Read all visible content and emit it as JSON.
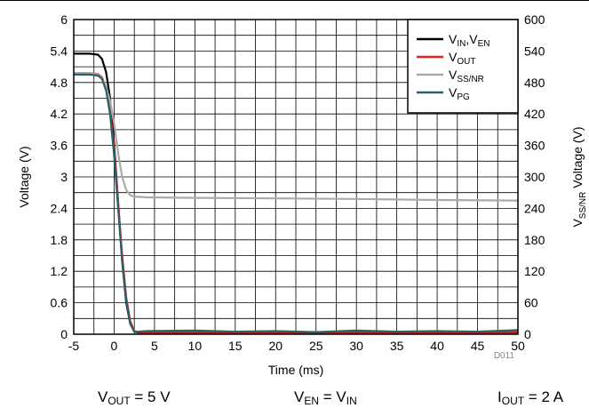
{
  "chart_data": {
    "type": "line",
    "xlabel": "Time (ms)",
    "ylabel": "Voltage (V)",
    "y2label": {
      "main": "V",
      "sub": "SS/NR",
      "rest": " Voltage (V)"
    },
    "xlim": [
      -5,
      50
    ],
    "ylim": [
      0,
      6
    ],
    "y2lim": [
      0,
      600
    ],
    "x_ticks": [
      -5,
      0,
      5,
      10,
      15,
      20,
      25,
      30,
      35,
      40,
      45,
      50
    ],
    "x_tick_labels": [
      "-5",
      "0",
      "5",
      "10",
      "15",
      "20",
      "25",
      "30",
      "35",
      "40",
      "45",
      "50"
    ],
    "y_ticks": [
      0,
      0.6,
      1.2,
      1.8,
      2.4,
      3,
      3.6,
      4.2,
      4.8,
      5.4,
      6
    ],
    "y_tick_labels": [
      "0",
      "0.6",
      "1.2",
      "1.8",
      "2.4",
      "3",
      "3.6",
      "4.2",
      "4.8",
      "5.4",
      "6"
    ],
    "y2_ticks": [
      0,
      60,
      120,
      180,
      240,
      300,
      360,
      420,
      480,
      540,
      600
    ],
    "y2_tick_labels": [
      "0",
      "60",
      "120",
      "180",
      "240",
      "300",
      "360",
      "420",
      "480",
      "540",
      "600"
    ],
    "grid": true,
    "legend_position": "top-right",
    "series": [
      {
        "key": "vin",
        "legend": {
          "main": "V",
          "sub": "IN",
          "main2": ",V",
          "sub2": "EN"
        },
        "color": "#000000",
        "axis": "left",
        "x": [
          -5,
          -3,
          -2,
          -1.5,
          -1,
          -0.5,
          0,
          0.5,
          1,
          1.5,
          2,
          2.5,
          3,
          4,
          10,
          20,
          30,
          40,
          50
        ],
        "y": [
          5.35,
          5.35,
          5.33,
          5.25,
          5.0,
          4.5,
          3.6,
          2.5,
          1.4,
          0.6,
          0.2,
          0.05,
          0.03,
          0.03,
          0.03,
          0.03,
          0.03,
          0.03,
          0.03
        ]
      },
      {
        "key": "vout",
        "legend": {
          "main": "V",
          "sub": "OUT"
        },
        "color": "#e8211a",
        "axis": "left",
        "x": [
          -5,
          -3,
          -2,
          -1.5,
          -1,
          -0.5,
          0,
          0.5,
          1,
          1.5,
          2,
          2.5,
          3,
          4,
          10,
          20,
          30,
          40,
          50
        ],
        "y": [
          4.98,
          4.98,
          4.96,
          4.9,
          4.7,
          4.3,
          3.5,
          2.5,
          1.5,
          0.7,
          0.25,
          0.06,
          0.04,
          0.04,
          0.04,
          0.04,
          0.04,
          0.04,
          0.04
        ]
      },
      {
        "key": "vss",
        "legend": {
          "main": "V",
          "sub": "SS/NR"
        },
        "color": "#aaaaaa",
        "axis": "right",
        "x": [
          -5,
          -3,
          -2,
          -1.5,
          -1,
          -0.5,
          0,
          0.5,
          1,
          1.5,
          2,
          2.5,
          3,
          4,
          10,
          20,
          30,
          40,
          50
        ],
        "y": [
          498,
          498,
          495,
          488,
          472,
          445,
          402,
          345,
          300,
          275,
          265,
          262,
          262,
          261,
          260,
          259,
          258,
          256,
          255
        ]
      },
      {
        "key": "vpg",
        "legend": {
          "main": "V",
          "sub": "PG"
        },
        "color": "#2b5f6b",
        "axis": "left",
        "x": [
          -5,
          -3,
          -2,
          -1.5,
          -1,
          -0.5,
          0,
          0.5,
          1,
          1.5,
          2,
          2.5,
          3,
          4,
          10,
          15,
          20,
          25,
          30,
          35,
          40,
          45,
          50
        ],
        "y": [
          4.95,
          4.95,
          4.93,
          4.87,
          4.65,
          4.2,
          3.4,
          2.4,
          1.4,
          0.65,
          0.2,
          0.05,
          0.05,
          0.06,
          0.07,
          0.05,
          0.06,
          0.04,
          0.07,
          0.05,
          0.06,
          0.05,
          0.08
        ]
      }
    ],
    "figure_code": "D011"
  },
  "conditions": [
    {
      "main": "V",
      "sub": "OUT",
      "rest": " = 5 V"
    },
    {
      "main": "V",
      "sub": "EN",
      "rest": " = V",
      "sub2": "IN"
    },
    {
      "main": "I",
      "sub": "OUT",
      "rest": " = 2 A"
    }
  ]
}
